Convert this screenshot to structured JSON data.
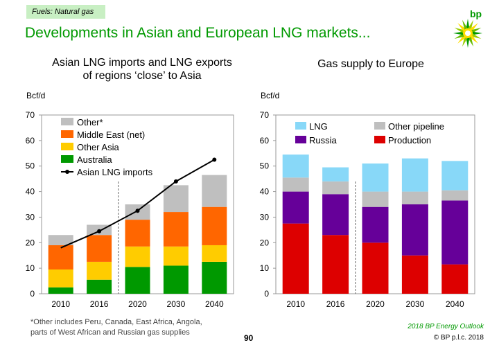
{
  "header": {
    "tag": "Fuels: Natural gas",
    "title": "Developments in Asian and European LNG markets...",
    "logo_text": "bp"
  },
  "colors": {
    "brand_green": "#009900",
    "other": "#bfbfbf",
    "middle_east": "#ff6600",
    "other_asia": "#ffcc00",
    "australia": "#009900",
    "lng": "#88d8f8",
    "other_pipeline": "#bfbfbf",
    "russia": "#660099",
    "production": "#dd0000"
  },
  "chart_data": [
    {
      "type": "bar",
      "stacked": true,
      "title": "Asian LNG imports and LNG exports of regions ‘close’ to Asia",
      "ylabel": "Bcf/d",
      "ylim": [
        0,
        70
      ],
      "yticks": [
        "0",
        "10",
        "20",
        "30",
        "40",
        "50",
        "60",
        "70"
      ],
      "categories": [
        "2010",
        "2016",
        "2020",
        "2030",
        "2040"
      ],
      "projection_divider_after": "2016",
      "legend_position": "top-left",
      "series": [
        {
          "name": "Australia",
          "color": "#009900",
          "values": [
            2.5,
            5.5,
            10.5,
            11.0,
            12.5
          ]
        },
        {
          "name": "Other Asia",
          "color": "#ffcc00",
          "values": [
            7.0,
            7.0,
            8.0,
            7.5,
            6.5
          ]
        },
        {
          "name": "Middle East (net)",
          "color": "#ff6600",
          "values": [
            9.5,
            10.5,
            10.5,
            13.5,
            15.0
          ]
        },
        {
          "name": "Other*",
          "color": "#bfbfbf",
          "values": [
            4.0,
            4.0,
            6.0,
            10.5,
            12.5
          ]
        }
      ],
      "line": {
        "name": "Asian LNG imports",
        "values": [
          18.0,
          24.5,
          32.5,
          44.0,
          52.5
        ]
      },
      "legend": [
        "Other*",
        "Middle East (net)",
        "Other Asia",
        "Australia",
        "Asian LNG imports"
      ]
    },
    {
      "type": "bar",
      "stacked": true,
      "title": "Gas supply to Europe",
      "ylabel": "Bcf/d",
      "ylim": [
        0,
        70
      ],
      "yticks": [
        "0",
        "10",
        "20",
        "30",
        "40",
        "50",
        "60",
        "70"
      ],
      "categories": [
        "2010",
        "2016",
        "2020",
        "2030",
        "2040"
      ],
      "projection_divider_after": "2016",
      "legend_position": "top",
      "series": [
        {
          "name": "Production",
          "color": "#dd0000",
          "values": [
            27.5,
            23.0,
            20.0,
            15.0,
            11.5
          ]
        },
        {
          "name": "Russia",
          "color": "#660099",
          "values": [
            12.5,
            16.0,
            14.0,
            20.0,
            25.0
          ]
        },
        {
          "name": "Other pipeline",
          "color": "#bfbfbf",
          "values": [
            5.5,
            5.0,
            6.0,
            5.0,
            4.0
          ]
        },
        {
          "name": "LNG",
          "color": "#88d8f8",
          "values": [
            9.0,
            5.5,
            11.0,
            13.0,
            11.5
          ]
        }
      ],
      "legend": [
        "LNG",
        "Other pipeline",
        "Russia",
        "Production"
      ]
    }
  ],
  "footer": {
    "footnote_1": "*Other includes Peru, Canada, East Africa, Angola,",
    "footnote_2": "parts of West African and Russian gas supplies",
    "page": "90",
    "outlook": "2018 BP Energy Outlook",
    "copyright": "© BP p.l.c. 2018"
  }
}
